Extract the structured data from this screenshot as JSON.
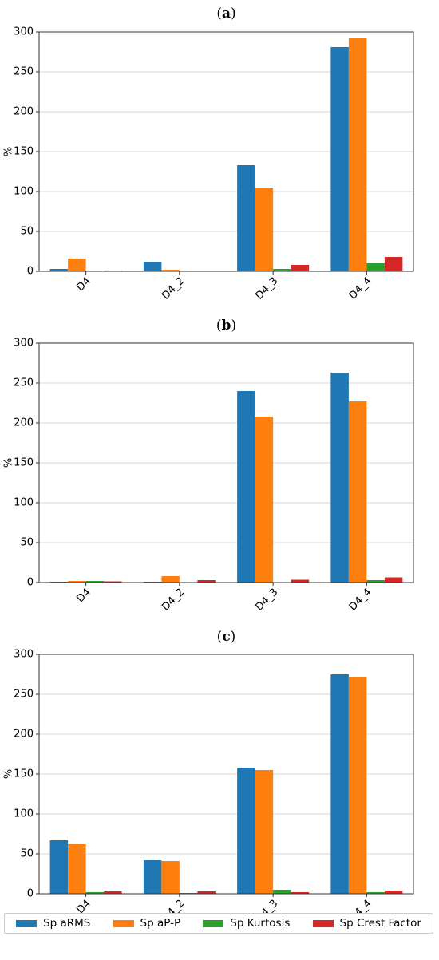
{
  "chart_data": [
    {
      "type": "bar",
      "title": "(a)",
      "ylabel": "%",
      "categories": [
        "D4",
        "D4_2",
        "D4_3",
        "D4_4"
      ],
      "ylim": [
        0,
        300
      ],
      "yticks": [
        0,
        50,
        100,
        150,
        200,
        250,
        300
      ],
      "grid": true,
      "series": [
        {
          "name": "Sp aRMS",
          "color": "#1f77b4",
          "values": [
            3,
            12,
            133,
            281
          ]
        },
        {
          "name": "Sp aP-P",
          "color": "#ff7f0e",
          "values": [
            16,
            2,
            105,
            292
          ]
        },
        {
          "name": "Sp Kurtosis",
          "color": "#2ca02c",
          "values": [
            0.5,
            0.5,
            3,
            10
          ]
        },
        {
          "name": "Sp Crest Factor",
          "color": "#d62728",
          "values": [
            1,
            0.5,
            8,
            18
          ]
        }
      ]
    },
    {
      "type": "bar",
      "title": "(b)",
      "ylabel": "%",
      "categories": [
        "D4",
        "D4_2",
        "D4_3",
        "D4_4"
      ],
      "ylim": [
        0,
        300
      ],
      "yticks": [
        0,
        50,
        100,
        150,
        200,
        250,
        300
      ],
      "grid": true,
      "series": [
        {
          "name": "Sp aRMS",
          "color": "#1f77b4",
          "values": [
            1,
            1,
            240,
            263
          ]
        },
        {
          "name": "Sp aP-P",
          "color": "#ff7f0e",
          "values": [
            2,
            8,
            208,
            227
          ]
        },
        {
          "name": "Sp Kurtosis",
          "color": "#2ca02c",
          "values": [
            2,
            0.5,
            0.5,
            3
          ]
        },
        {
          "name": "Sp Crest Factor",
          "color": "#d62728",
          "values": [
            1.5,
            3,
            3.5,
            6.5
          ]
        }
      ]
    },
    {
      "type": "bar",
      "title": "(c)",
      "ylabel": "%",
      "categories": [
        "D4",
        "D4_2",
        "D4_3",
        "D4_4"
      ],
      "ylim": [
        0,
        300
      ],
      "yticks": [
        0,
        50,
        100,
        150,
        200,
        250,
        300
      ],
      "grid": true,
      "series": [
        {
          "name": "Sp aRMS",
          "color": "#1f77b4",
          "values": [
            67,
            42,
            158,
            275
          ]
        },
        {
          "name": "Sp aP-P",
          "color": "#ff7f0e",
          "values": [
            62,
            41,
            155,
            272
          ]
        },
        {
          "name": "Sp Kurtosis",
          "color": "#2ca02c",
          "values": [
            2,
            1,
            5,
            2
          ]
        },
        {
          "name": "Sp Crest Factor",
          "color": "#d62728",
          "values": [
            3,
            3,
            2,
            4
          ]
        }
      ]
    }
  ],
  "legend": {
    "position": "bottom",
    "items": [
      {
        "label": "Sp aRMS",
        "color": "#1f77b4"
      },
      {
        "label": "Sp aP-P",
        "color": "#ff7f0e"
      },
      {
        "label": "Sp Kurtosis",
        "color": "#2ca02c"
      },
      {
        "label": "Sp Crest Factor",
        "color": "#d62728"
      }
    ]
  }
}
